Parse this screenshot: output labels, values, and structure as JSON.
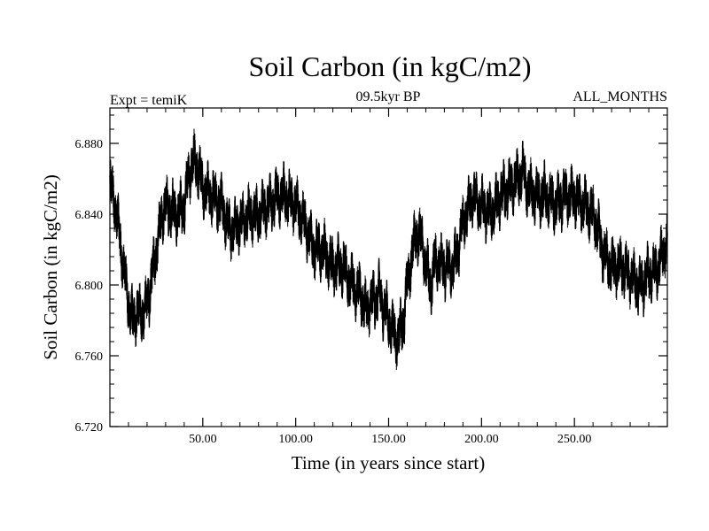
{
  "chart_data": {
    "type": "line",
    "title": "Soil Carbon (in kgC/m2)",
    "subtitle_left": "Expt = temiK",
    "subtitle_center": "09.5kyr BP",
    "subtitle_right": "ALL_MONTHS",
    "xlabel": "Time (in years since start)",
    "ylabel": "Soil Carbon (in kgC/m2)",
    "xlim": [
      0,
      300
    ],
    "ylim": [
      6.72,
      6.9
    ],
    "x_ticks": [
      50,
      100,
      150,
      200,
      250
    ],
    "x_tick_labels": [
      "50.00",
      "100.00",
      "150.00",
      "200.00",
      "250.00"
    ],
    "y_ticks": [
      6.72,
      6.76,
      6.8,
      6.84,
      6.88
    ],
    "y_tick_labels": [
      "6.720",
      "6.760",
      "6.800",
      "6.840",
      "6.880"
    ],
    "line_color": "#000000",
    "series": [
      {
        "name": "Soil Carbon",
        "x": [
          0,
          2,
          5,
          8,
          10,
          12,
          15,
          18,
          20,
          22,
          25,
          28,
          30,
          35,
          40,
          42,
          45,
          48,
          50,
          55,
          60,
          63,
          65,
          70,
          75,
          80,
          85,
          90,
          95,
          100,
          105,
          108,
          110,
          115,
          120,
          125,
          130,
          135,
          138,
          140,
          145,
          150,
          153,
          155,
          158,
          160,
          163,
          165,
          168,
          170,
          173,
          175,
          180,
          185,
          190,
          195,
          200,
          205,
          210,
          215,
          220,
          222,
          225,
          230,
          235,
          240,
          245,
          250,
          255,
          260,
          263,
          265,
          270,
          275,
          280,
          285,
          290,
          295,
          300
        ],
        "values": [
          6.855,
          6.85,
          6.83,
          6.805,
          6.79,
          6.78,
          6.785,
          6.783,
          6.79,
          6.8,
          6.82,
          6.84,
          6.845,
          6.84,
          6.845,
          6.86,
          6.87,
          6.865,
          6.855,
          6.85,
          6.845,
          6.835,
          6.83,
          6.835,
          6.84,
          6.84,
          6.845,
          6.85,
          6.85,
          6.845,
          6.835,
          6.825,
          6.82,
          6.82,
          6.81,
          6.812,
          6.8,
          6.795,
          6.785,
          6.79,
          6.795,
          6.78,
          6.772,
          6.77,
          6.78,
          6.8,
          6.82,
          6.83,
          6.825,
          6.81,
          6.8,
          6.815,
          6.81,
          6.81,
          6.835,
          6.85,
          6.845,
          6.84,
          6.85,
          6.855,
          6.86,
          6.865,
          6.855,
          6.85,
          6.85,
          6.845,
          6.85,
          6.85,
          6.845,
          6.84,
          6.83,
          6.82,
          6.81,
          6.81,
          6.805,
          6.8,
          6.805,
          6.81,
          6.825
        ]
      }
    ]
  }
}
